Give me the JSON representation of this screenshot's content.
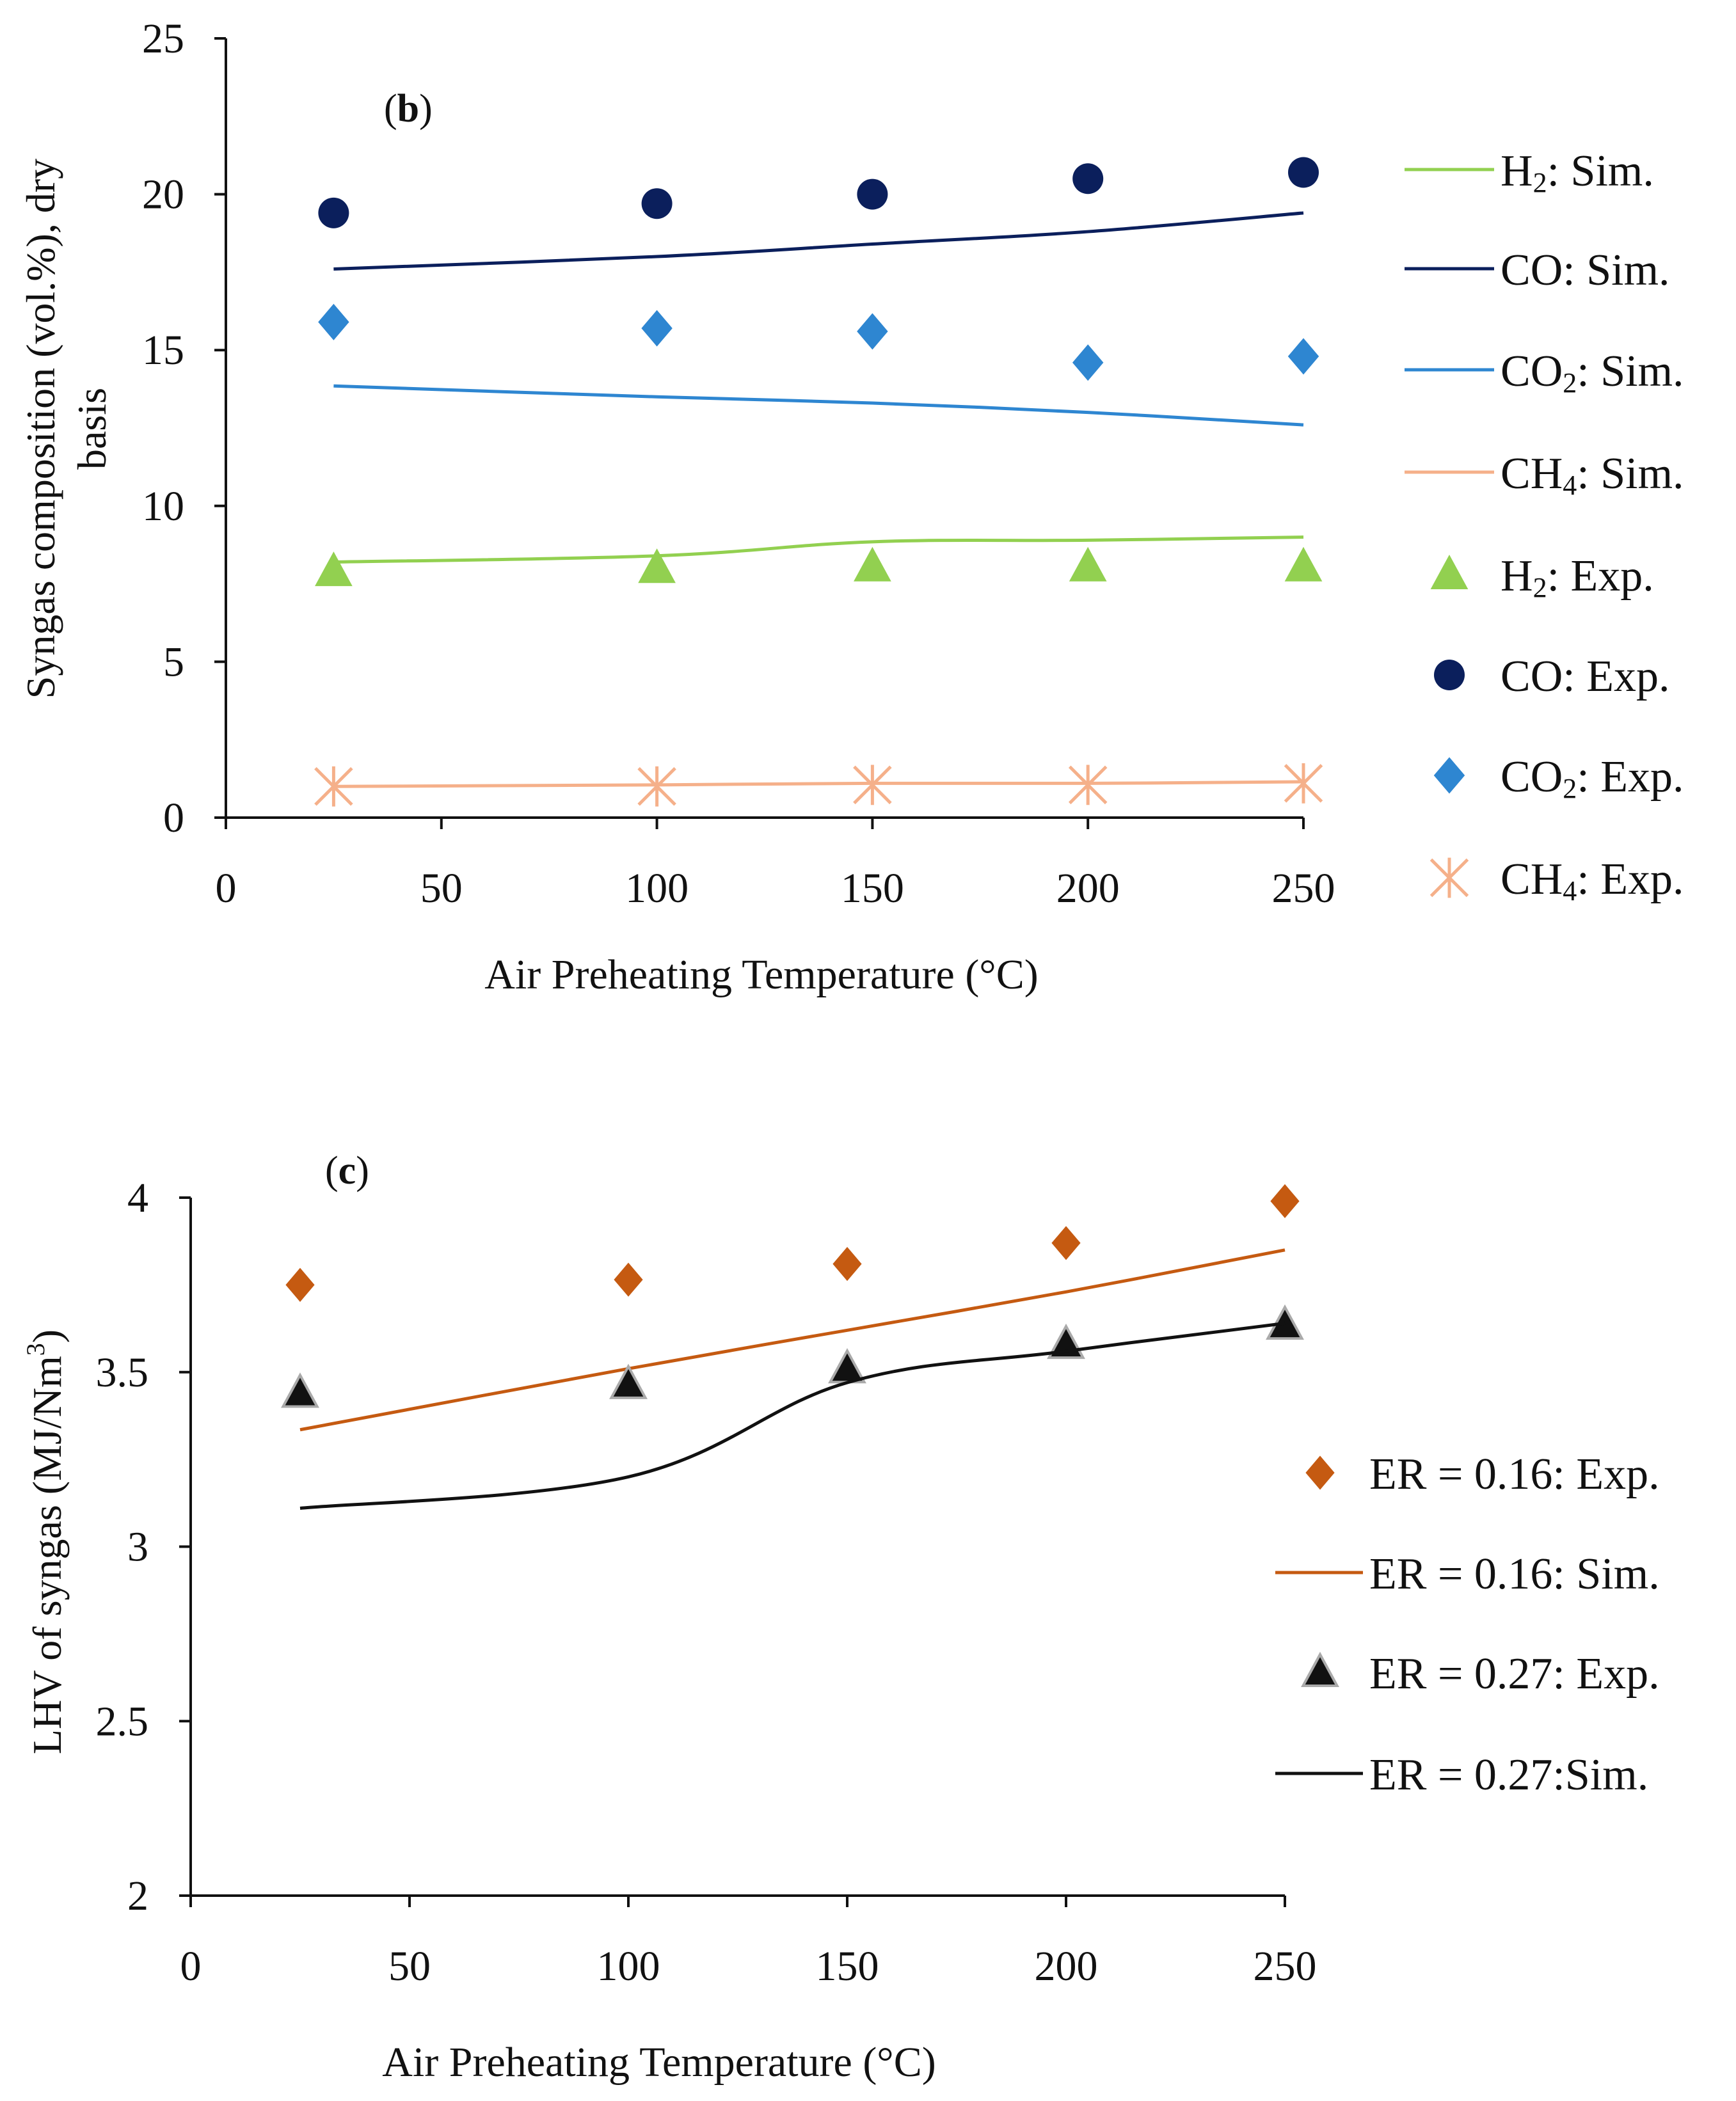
{
  "chart_data": [
    {
      "type": "scatter",
      "panel_label_paren_open": "(",
      "panel_label_letter": "b",
      "panel_label_paren_close": ")",
      "xlabel": "Air Preheating Temperature (°C)",
      "ylabel_line1": "Syngas composition (vol.%), dry",
      "ylabel_line2": "basis",
      "xlim": [
        0,
        250
      ],
      "ylim": [
        0,
        25
      ],
      "xticks": [
        "0",
        "50",
        "100",
        "150",
        "200",
        "250"
      ],
      "yticks": [
        "0",
        "5",
        "10",
        "15",
        "20",
        "25"
      ],
      "x": [
        25,
        100,
        150,
        200,
        250
      ],
      "series": [
        {
          "key": "h2sim",
          "name": "H2: Sim.",
          "legend_main": "H",
          "legend_sub": "2",
          "legend_rest": ": Sim.",
          "kind": "line",
          "marker": "none",
          "color": "#92D050",
          "values": [
            8.2,
            8.4,
            8.85,
            8.9,
            9.0
          ]
        },
        {
          "key": "cosim",
          "name": "CO: Sim.",
          "legend_main": "CO: Sim.",
          "legend_sub": "",
          "legend_rest": "",
          "kind": "line",
          "marker": "none",
          "color": "#0B1F5C",
          "values": [
            17.6,
            18.0,
            18.4,
            18.8,
            19.4
          ]
        },
        {
          "key": "co2sim",
          "name": "CO2: Sim.",
          "legend_main": "CO",
          "legend_sub": "2",
          "legend_rest": ": Sim.",
          "kind": "line",
          "marker": "none",
          "color": "#2E86D1",
          "values": [
            13.85,
            13.5,
            13.3,
            13.0,
            12.6
          ]
        },
        {
          "key": "ch4sim",
          "name": "CH4: Sim.",
          "legend_main": "CH",
          "legend_sub": "4",
          "legend_rest": ": Sim.",
          "kind": "line",
          "marker": "none",
          "color": "#F5B08A",
          "values": [
            1.0,
            1.05,
            1.1,
            1.1,
            1.15
          ]
        },
        {
          "key": "h2exp",
          "name": "H2: Exp.",
          "legend_main": "H",
          "legend_sub": "2",
          "legend_rest": ": Exp.",
          "kind": "marker",
          "marker": "triangle",
          "color": "#92D050",
          "values": [
            7.9,
            8.0,
            8.05,
            8.05,
            8.05
          ]
        },
        {
          "key": "coexp",
          "name": "CO: Exp.",
          "legend_main": "CO: Exp.",
          "legend_sub": "",
          "legend_rest": "",
          "kind": "marker",
          "marker": "circle",
          "color": "#0B1F5C",
          "values": [
            19.4,
            19.7,
            20.0,
            20.5,
            20.7
          ]
        },
        {
          "key": "co2exp",
          "name": "CO2: Exp.",
          "legend_main": "CO",
          "legend_sub": "2",
          "legend_rest": ": Exp.",
          "kind": "marker",
          "marker": "diamond",
          "color": "#2E86D1",
          "values": [
            15.9,
            15.7,
            15.6,
            14.6,
            14.8
          ]
        },
        {
          "key": "ch4exp",
          "name": "CH4: Exp.",
          "legend_main": "CH",
          "legend_sub": "4",
          "legend_rest": ": Exp.",
          "kind": "marker",
          "marker": "asterisk",
          "color": "#F5B08A",
          "values": [
            1.0,
            1.0,
            1.05,
            1.05,
            1.1
          ]
        }
      ]
    },
    {
      "type": "scatter",
      "panel_label_paren_open": "(",
      "panel_label_letter": "c",
      "panel_label_paren_close": ")",
      "xlabel": "Air Preheating Temperature (°C)",
      "ylabel_main": "LHV  of syngas (MJ/Nm",
      "ylabel_sup": "3",
      "ylabel_close": ")",
      "xlim": [
        0,
        250
      ],
      "ylim": [
        2,
        4
      ],
      "xticks": [
        "0",
        "50",
        "100",
        "150",
        "200",
        "250"
      ],
      "yticks": [
        "2",
        "2.5",
        "3",
        "3.5",
        "4"
      ],
      "x": [
        25,
        100,
        150,
        200,
        250
      ],
      "series": [
        {
          "key": "er16exp",
          "name": "ER = 0.16: Exp.",
          "legend_main": "ER = 0.16: Exp.",
          "legend_sub": "",
          "legend_rest": "",
          "kind": "marker",
          "marker": "diamond",
          "color": "#C55A11",
          "values": [
            3.75,
            3.765,
            3.81,
            3.87,
            3.99
          ]
        },
        {
          "key": "er16sim",
          "name": "ER = 0.16: Sim.",
          "legend_main": "ER = 0.16: Sim.",
          "legend_sub": "",
          "legend_rest": "",
          "kind": "line",
          "marker": "none",
          "color": "#C55A11",
          "values": [
            3.335,
            3.51,
            3.62,
            3.73,
            3.85
          ]
        },
        {
          "key": "er27exp",
          "name": "ER = 0.27: Exp.",
          "legend_main": "ER = 0.27: Exp.",
          "legend_sub": "",
          "legend_rest": "",
          "kind": "marker",
          "marker": "triangle",
          "color": "#111111",
          "values": [
            3.44,
            3.465,
            3.51,
            3.58,
            3.635
          ]
        },
        {
          "key": "er27sim",
          "name": "ER = 0.27:Sim.",
          "legend_main": "ER = 0.27:Sim.",
          "legend_sub": "",
          "legend_rest": "",
          "kind": "line",
          "marker": "none",
          "color": "#111111",
          "values": [
            3.11,
            3.2,
            3.47,
            3.56,
            3.64
          ]
        }
      ]
    }
  ]
}
